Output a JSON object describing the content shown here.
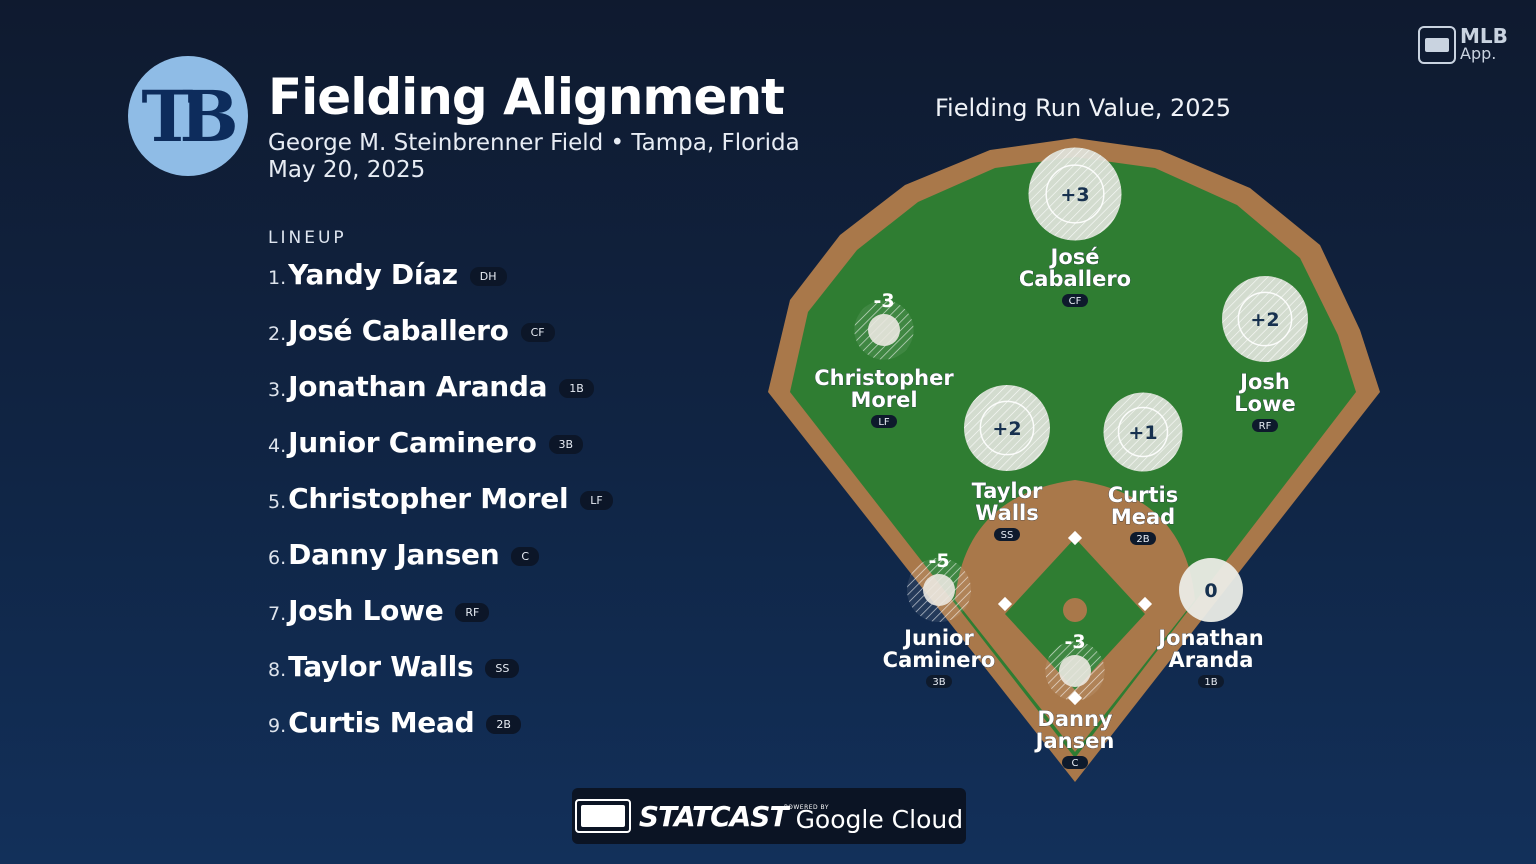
{
  "header": {
    "team_logo": "TB",
    "title": "Fielding Alignment",
    "venue": "George M. Steinbrenner Field • Tampa, Florida",
    "date": "May 20, 2025"
  },
  "lineup": {
    "heading": "LINEUP",
    "players": [
      {
        "num": "1.",
        "name": "Yandy Díaz",
        "pos": "DH"
      },
      {
        "num": "2.",
        "name": "José Caballero",
        "pos": "CF"
      },
      {
        "num": "3.",
        "name": "Jonathan Aranda",
        "pos": "1B"
      },
      {
        "num": "4.",
        "name": "Junior Caminero",
        "pos": "3B"
      },
      {
        "num": "5.",
        "name": "Christopher Morel",
        "pos": "LF"
      },
      {
        "num": "6.",
        "name": "Danny Jansen",
        "pos": "C"
      },
      {
        "num": "7.",
        "name": "Josh Lowe",
        "pos": "RF"
      },
      {
        "num": "8.",
        "name": "Taylor Walls",
        "pos": "SS"
      },
      {
        "num": "9.",
        "name": "Curtis Mead",
        "pos": "2B"
      }
    ]
  },
  "field": {
    "title": "Fielding Run Value, 2025",
    "players": [
      {
        "first": "José",
        "last": "Caballero",
        "pos": "CF",
        "value": 3,
        "label": "+3"
      },
      {
        "first": "Christopher",
        "last": "Morel",
        "pos": "LF",
        "value": -3,
        "label": "-3"
      },
      {
        "first": "Josh",
        "last": "Lowe",
        "pos": "RF",
        "value": 2,
        "label": "+2"
      },
      {
        "first": "Taylor",
        "last": "Walls",
        "pos": "SS",
        "value": 2,
        "label": "+2"
      },
      {
        "first": "Curtis",
        "last": "Mead",
        "pos": "2B",
        "value": 1,
        "label": "+1"
      },
      {
        "first": "Junior",
        "last": "Caminero",
        "pos": "3B",
        "value": -5,
        "label": "-5"
      },
      {
        "first": "Jonathan",
        "last": "Aranda",
        "pos": "1B",
        "value": 0,
        "label": "0"
      },
      {
        "first": "Danny",
        "last": "Jansen",
        "pos": "C",
        "value": -3,
        "label": "-3"
      }
    ]
  },
  "brand": {
    "app_line1": "MLB",
    "app_line2": "App.",
    "footer_statcast": "STATCAST",
    "footer_powered": "POWERED BY",
    "footer_cloud": "Google Cloud"
  },
  "colors": {
    "background": "#102545",
    "grass": "#2f7d32",
    "dirt": "#a9784a",
    "logo_circle": "#8fbce6"
  }
}
